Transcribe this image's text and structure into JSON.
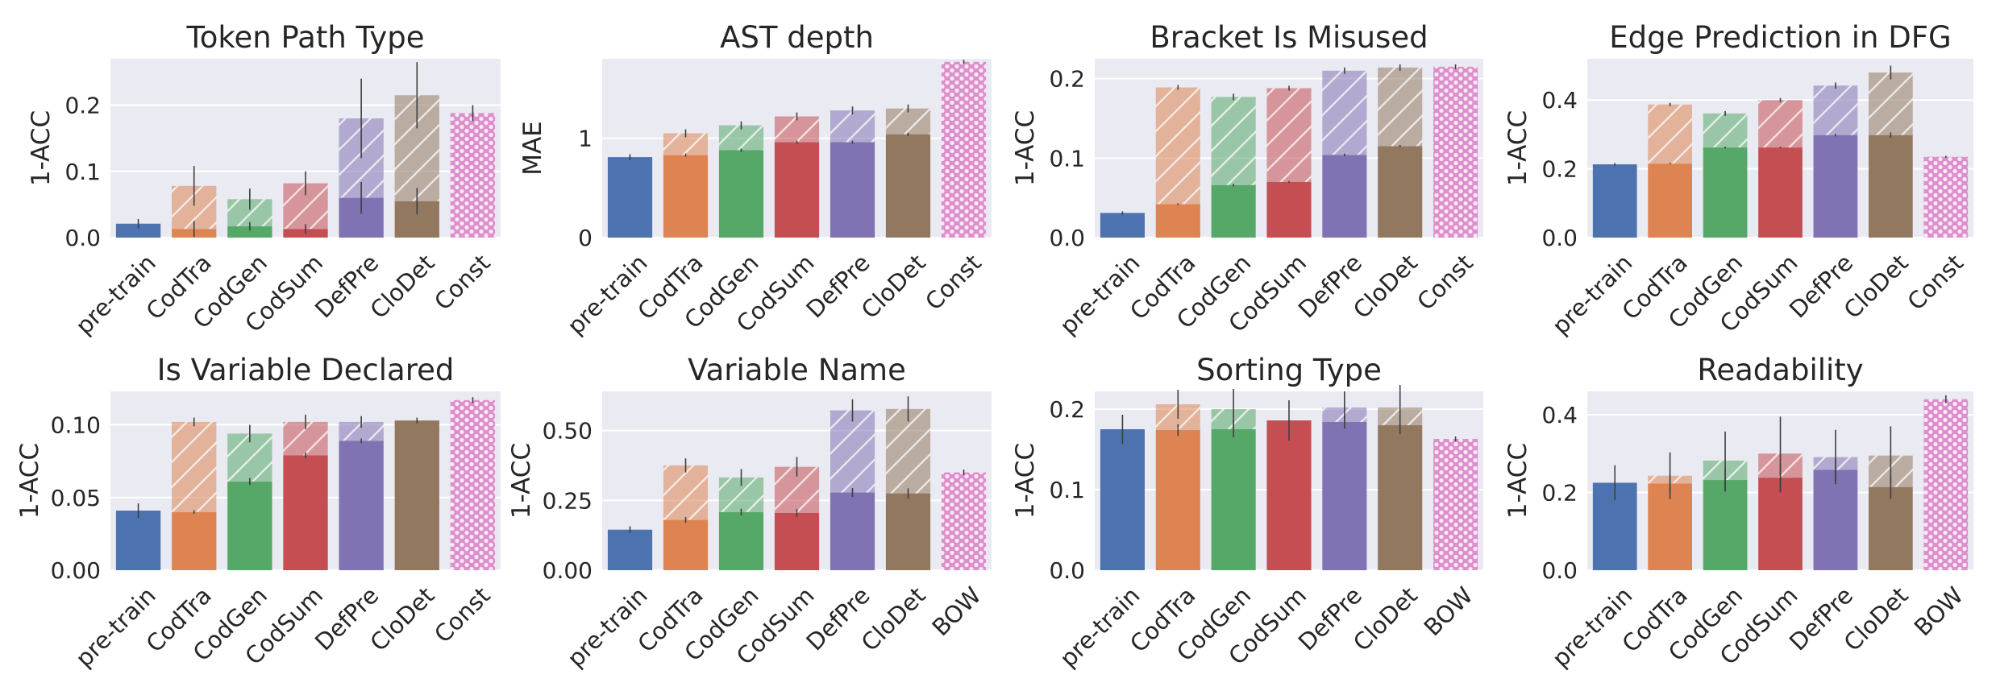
{
  "colors": {
    "background": "#eaeaf2",
    "grid": "#ffffff",
    "error_bar": "#3f3f3f",
    "baseline_bar": "#dd8fcd",
    "categories": [
      "#4c72b0",
      "#dd8452",
      "#55a868",
      "#c44e52",
      "#8172b3",
      "#937860"
    ]
  },
  "chart_data": [
    {
      "type": "bar",
      "title": "Token Path Type",
      "ylabel": "1-ACC",
      "ylim": [
        0,
        0.27
      ],
      "yticks": [
        "0.0",
        "0.1",
        "0.2"
      ],
      "ytick_values": [
        0,
        0.1,
        0.2
      ],
      "categories": [
        "pre-train",
        "CodTra",
        "CodGen",
        "CodSum",
        "DefPre",
        "CloDet",
        "Const"
      ],
      "series": [
        {
          "values": [
            0.021,
            0.013,
            0.017,
            0.013,
            0.06,
            0.055,
            null
          ]
        },
        {
          "values": [
            null,
            0.078,
            0.058,
            0.082,
            0.18,
            0.215,
            0.188
          ]
        }
      ],
      "error": [
        0.007,
        0.03,
        0.016,
        0.018,
        0.06,
        0.05,
        0.012
      ]
    },
    {
      "type": "bar",
      "title": "AST depth",
      "ylabel": "MAE",
      "ylim": [
        0,
        1.8
      ],
      "yticks": [
        "0",
        "1"
      ],
      "ytick_values": [
        0,
        1
      ],
      "categories": [
        "pre-train",
        "CodTra",
        "CodGen",
        "CodSum",
        "DefPre",
        "CloDet",
        "Const"
      ],
      "series": [
        {
          "values": [
            0.81,
            0.83,
            0.88,
            0.96,
            0.96,
            1.04,
            null
          ]
        },
        {
          "values": [
            null,
            1.05,
            1.13,
            1.22,
            1.28,
            1.3,
            1.77
          ]
        }
      ],
      "error": [
        0.03,
        0.04,
        0.04,
        0.04,
        0.04,
        0.04,
        0.02
      ]
    },
    {
      "type": "bar",
      "title": "Bracket Is Misused",
      "ylabel": "1-ACC",
      "ylim": [
        0,
        0.225
      ],
      "yticks": [
        "0.0",
        "0.1",
        "0.2"
      ],
      "ytick_values": [
        0,
        0.1,
        0.2
      ],
      "categories": [
        "pre-train",
        "CodTra",
        "CodGen",
        "CodSum",
        "DefPre",
        "CloDet",
        "Const"
      ],
      "series": [
        {
          "values": [
            0.031,
            0.042,
            0.066,
            0.07,
            0.104,
            0.115,
            null
          ]
        },
        {
          "values": [
            null,
            0.189,
            0.177,
            0.188,
            0.21,
            0.214,
            0.215
          ]
        }
      ],
      "error": [
        0.002,
        0.003,
        0.004,
        0.003,
        0.004,
        0.004,
        0.003
      ]
    },
    {
      "type": "bar",
      "title": "Edge Prediction in DFG",
      "ylabel": "1-ACC",
      "ylim": [
        0,
        0.52
      ],
      "yticks": [
        "0.0",
        "0.2",
        "0.4"
      ],
      "ytick_values": [
        0,
        0.2,
        0.4
      ],
      "categories": [
        "pre-train",
        "CodTra",
        "CodGen",
        "CodSum",
        "DefPre",
        "CloDet",
        "Const"
      ],
      "series": [
        {
          "values": [
            0.213,
            0.215,
            0.262,
            0.262,
            0.298,
            0.298,
            null
          ]
        },
        {
          "values": [
            null,
            0.387,
            0.361,
            0.4,
            0.442,
            0.48,
            0.235
          ]
        }
      ],
      "error": [
        0.004,
        0.005,
        0.007,
        0.006,
        0.009,
        0.02,
        0.003
      ]
    },
    {
      "type": "bar",
      "title": "Is Variable Declared",
      "ylabel": "1-ACC",
      "ylim": [
        0,
        0.123
      ],
      "yticks": [
        "0.00",
        "0.05",
        "0.10"
      ],
      "ytick_values": [
        0,
        0.05,
        0.1
      ],
      "categories": [
        "pre-train",
        "CodTra",
        "CodGen",
        "CodSum",
        "DefPre",
        "CloDet",
        "Const"
      ],
      "series": [
        {
          "values": [
            0.041,
            0.04,
            0.061,
            0.079,
            0.089,
            0.103,
            null
          ]
        },
        {
          "values": [
            null,
            0.102,
            0.094,
            0.102,
            0.102,
            null,
            0.117
          ]
        }
      ],
      "error": [
        0.005,
        0.003,
        0.006,
        0.005,
        0.004,
        0.002,
        0.002
      ]
    },
    {
      "type": "bar",
      "title": "Variable Name",
      "ylabel": "1-ACC",
      "ylim": [
        0,
        0.64
      ],
      "yticks": [
        "0.00",
        "0.25",
        "0.50"
      ],
      "ytick_values": [
        0,
        0.25,
        0.5
      ],
      "categories": [
        "pre-train",
        "CodTra",
        "CodGen",
        "CodSum",
        "DefPre",
        "CloDet",
        "BOW"
      ],
      "series": [
        {
          "values": [
            0.145,
            0.18,
            0.208,
            0.205,
            0.278,
            0.275,
            null
          ]
        },
        {
          "values": [
            null,
            0.375,
            0.332,
            0.37,
            0.572,
            0.577,
            0.35
          ]
        }
      ],
      "error": [
        0.012,
        0.025,
        0.03,
        0.035,
        0.04,
        0.045,
        0.01
      ]
    },
    {
      "type": "bar",
      "title": "Sorting Type",
      "ylabel": "1-ACC",
      "ylim": [
        0,
        0.222
      ],
      "yticks": [
        "0.0",
        "0.1",
        "0.2"
      ],
      "ytick_values": [
        0,
        0.1,
        0.2
      ],
      "categories": [
        "pre-train",
        "CodTra",
        "CodGen",
        "CodSum",
        "DefPre",
        "CloDet",
        "BOW"
      ],
      "series": [
        {
          "values": [
            0.175,
            0.174,
            0.175,
            0.186,
            0.184,
            0.18,
            null
          ]
        },
        {
          "values": [
            null,
            0.206,
            0.2,
            null,
            0.202,
            0.202,
            0.163
          ]
        }
      ],
      "error": [
        0.018,
        0.018,
        0.025,
        0.025,
        0.02,
        0.028,
        0.003
      ]
    },
    {
      "type": "bar",
      "title": "Readability",
      "ylabel": "1-ACC",
      "ylim": [
        0,
        0.46
      ],
      "yticks": [
        "0.0",
        "0.2",
        "0.4"
      ],
      "ytick_values": [
        0,
        0.2,
        0.4
      ],
      "categories": [
        "pre-train",
        "CodTra",
        "CodGen",
        "CodSum",
        "DefPre",
        "CloDet",
        "BOW"
      ],
      "series": [
        {
          "values": [
            0.225,
            0.223,
            0.232,
            0.238,
            0.258,
            0.214,
            null
          ]
        },
        {
          "values": [
            null,
            0.243,
            0.282,
            0.3,
            0.291,
            0.295,
            0.44
          ]
        }
      ],
      "error": [
        0.045,
        0.06,
        0.075,
        0.095,
        0.07,
        0.075,
        0.01
      ]
    }
  ]
}
